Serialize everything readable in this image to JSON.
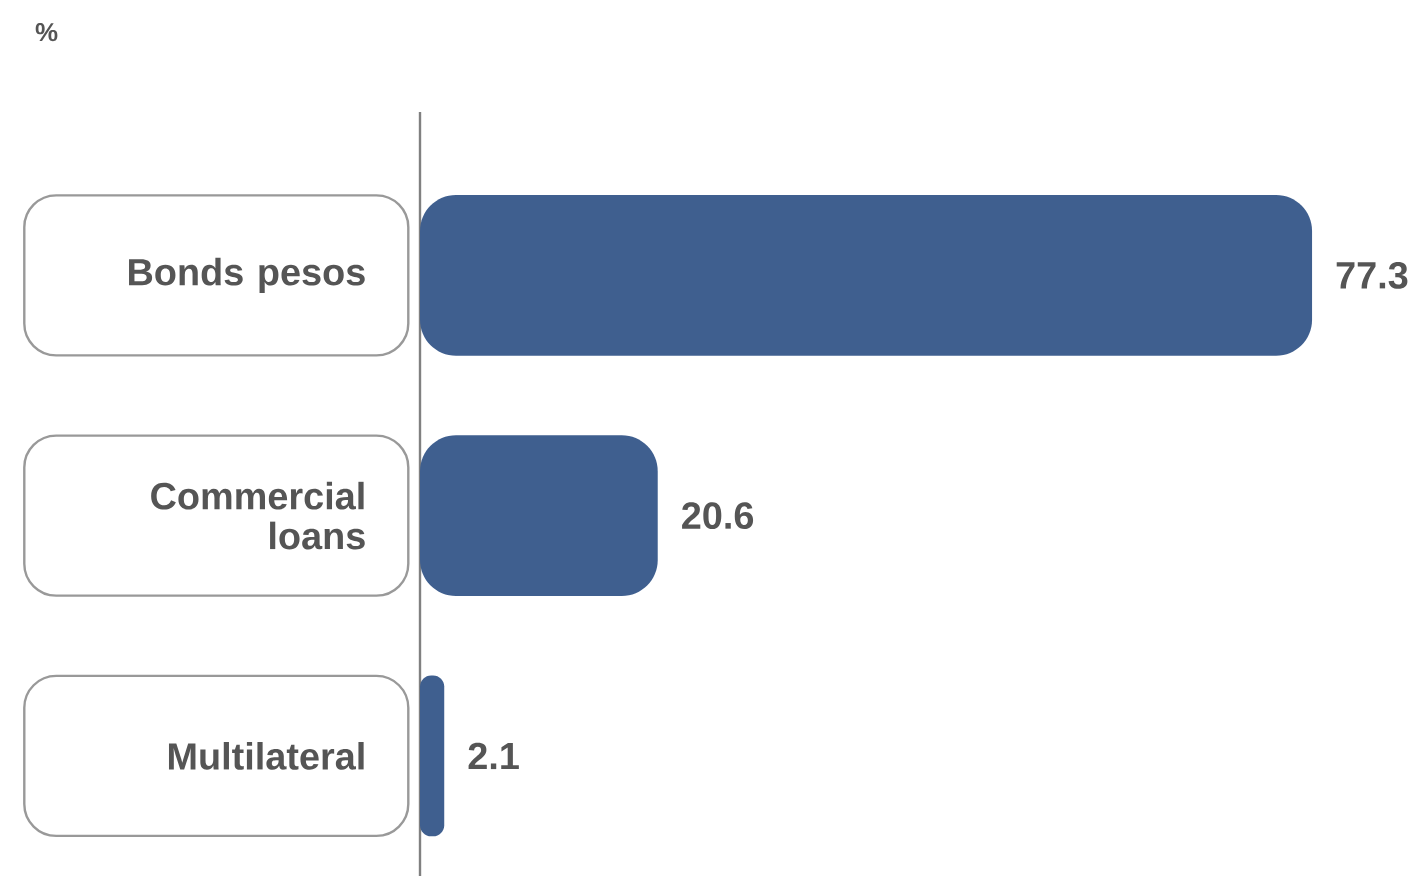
{
  "chart_data": {
    "type": "bar",
    "orientation": "horizontal",
    "ylabel": "%",
    "categories": [
      "Bonds pesos",
      "Commercial loans",
      "Multilateral"
    ],
    "values": [
      77.3,
      20.6,
      2.1
    ],
    "color": "#3f5f8f",
    "data_labels": true
  }
}
